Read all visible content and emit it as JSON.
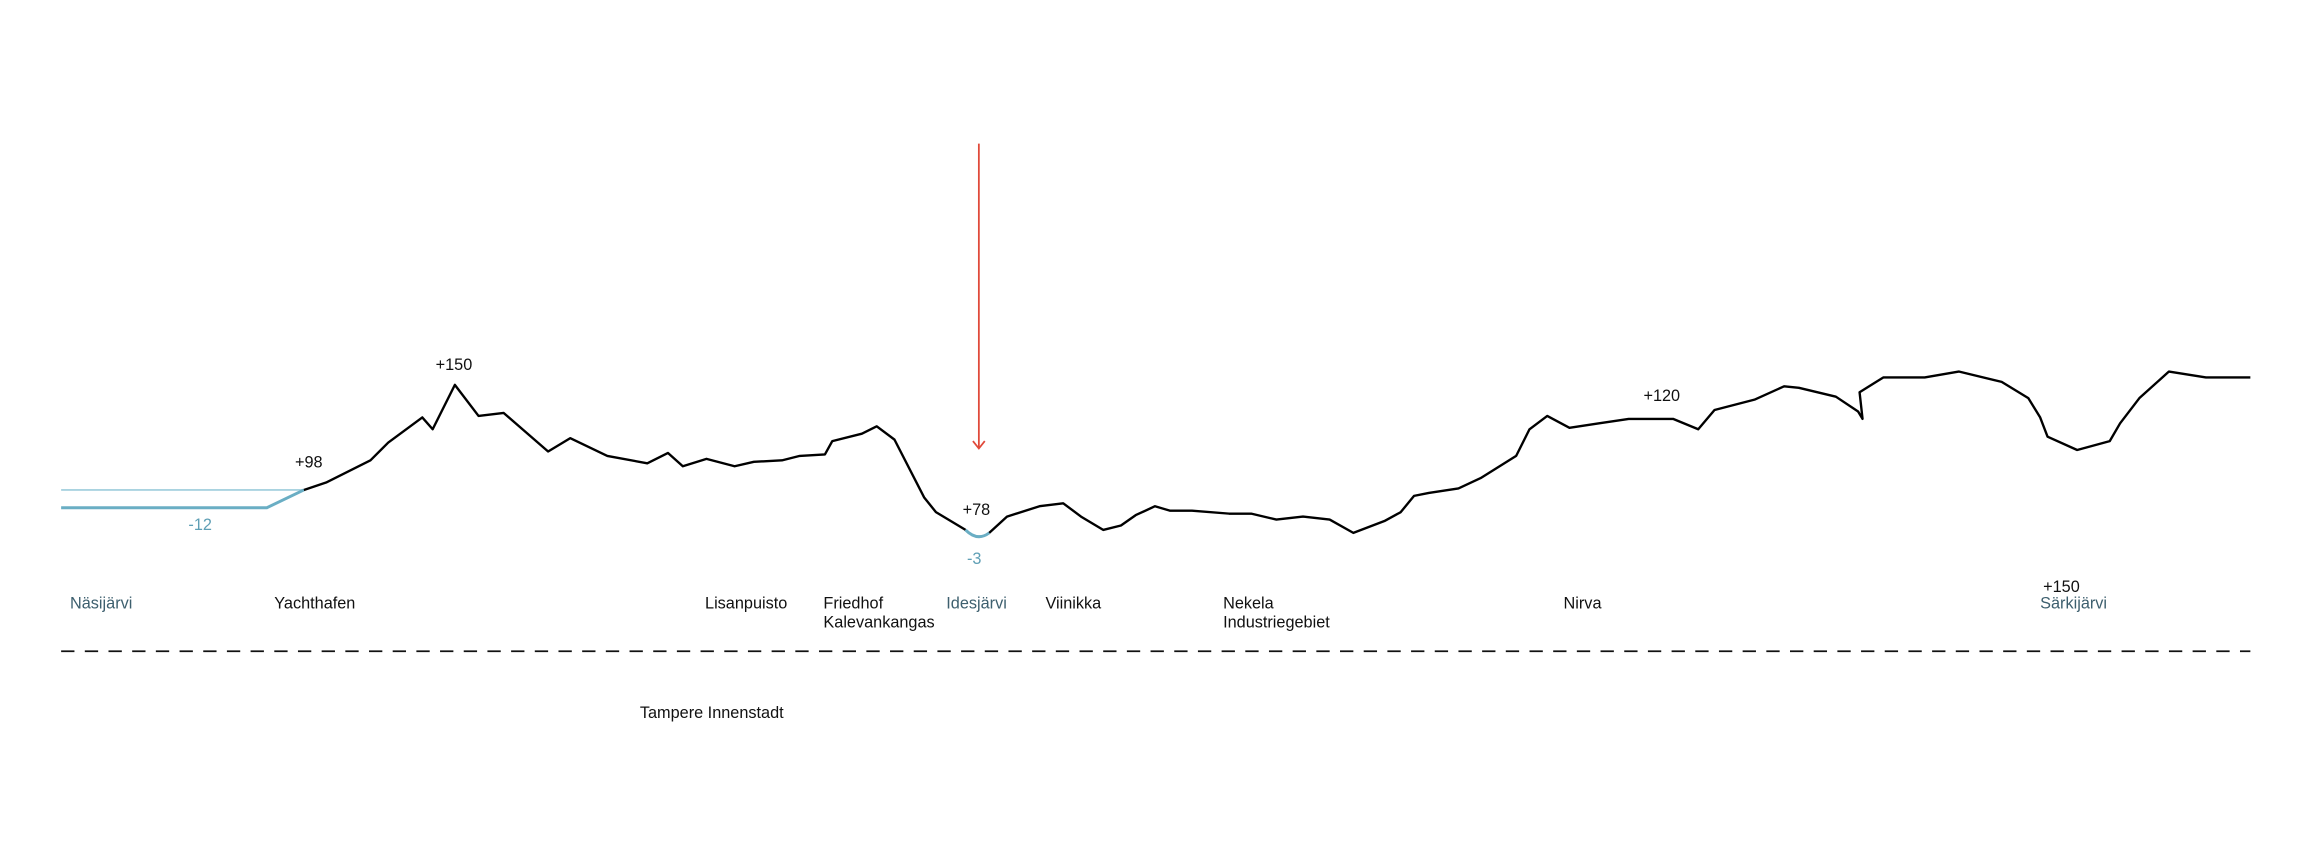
{
  "elevations": [
    "+150",
    "+98",
    "-12",
    "+78",
    "-3",
    "+120",
    "+150"
  ],
  "places": [
    [
      "Näsijärvi"
    ],
    [
      "Yachthafen"
    ],
    [
      "Lisanpuisto"
    ],
    [
      "Friedhof",
      "Kalevankangas"
    ],
    [
      "Idesjärvi"
    ],
    [
      "Viinikka"
    ],
    [
      "Nekela",
      "Industriegebiet"
    ],
    [
      "Nirva"
    ],
    [
      "Särkijärvi"
    ]
  ],
  "district": "Tampere Innenstadt"
}
